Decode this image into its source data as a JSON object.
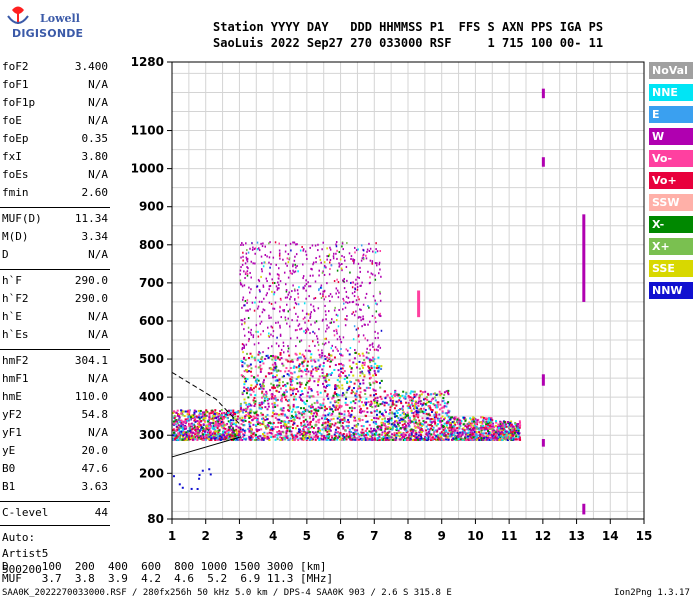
{
  "logo": {
    "top": "Lowell",
    "bottom": "DIGISONDE",
    "colors": {
      "text": "#3b5aa8",
      "pin": "#ff2020"
    }
  },
  "header": {
    "line1": "Station YYYY DAY   DDD HHMMSS P1  FFS S AXN PPS IGA PS",
    "line2": "SaoLuis 2022 Sep27 270 033000 RSF     1 715 100 00- 11"
  },
  "params": {
    "group1": [
      {
        "k": "foF2",
        "v": "3.400"
      },
      {
        "k": "foF1",
        "v": "N/A"
      },
      {
        "k": "foF1p",
        "v": "N/A"
      },
      {
        "k": "foE",
        "v": "N/A"
      },
      {
        "k": "foEp",
        "v": "0.35"
      },
      {
        "k": "fxI",
        "v": "3.80"
      },
      {
        "k": "foEs",
        "v": "N/A"
      },
      {
        "k": "fmin",
        "v": "2.60"
      }
    ],
    "group2": [
      {
        "k": "MUF(D)",
        "v": "11.34"
      },
      {
        "k": "M(D)",
        "v": "3.34"
      },
      {
        "k": "D",
        "v": "N/A"
      }
    ],
    "group3": [
      {
        "k": "h`F",
        "v": "290.0"
      },
      {
        "k": "h`F2",
        "v": "290.0"
      },
      {
        "k": "h`E",
        "v": "N/A"
      },
      {
        "k": "h`Es",
        "v": "N/A"
      }
    ],
    "group4": [
      {
        "k": "hmF2",
        "v": "304.1"
      },
      {
        "k": "hmF1",
        "v": "N/A"
      },
      {
        "k": "hmE",
        "v": "110.0"
      },
      {
        "k": "yF2",
        "v": "54.8"
      },
      {
        "k": "yF1",
        "v": "N/A"
      },
      {
        "k": "yE",
        "v": "20.0"
      },
      {
        "k": "B0",
        "v": "47.6"
      },
      {
        "k": "B1",
        "v": "3.63"
      }
    ],
    "clevel": {
      "k": "C-level",
      "v": "44"
    },
    "auto": [
      "Auto:",
      "Artist5",
      "500200"
    ]
  },
  "legend": [
    {
      "label": "NoVal",
      "color": "#a0a0a0"
    },
    {
      "label": "NNE",
      "color": "#00e5f5"
    },
    {
      "label": "E",
      "color": "#3aa0f0"
    },
    {
      "label": "W",
      "color": "#b000b0"
    },
    {
      "label": "Vo-",
      "color": "#ff40a0"
    },
    {
      "label": "Vo+",
      "color": "#e8003c"
    },
    {
      "label": "SSW",
      "color": "#ffb0a8"
    },
    {
      "label": "X-",
      "color": "#008800"
    },
    {
      "label": "X+",
      "color": "#7ac050"
    },
    {
      "label": "SSE",
      "color": "#d8d800"
    },
    {
      "label": "NNW",
      "color": "#1010d0"
    }
  ],
  "chart_data": {
    "type": "scatter",
    "title": "",
    "xlabel": "",
    "ylabel": "",
    "xlim": [
      1,
      15
    ],
    "ylim_range": [
      80,
      1280
    ],
    "x_ticks": [
      "1",
      "2",
      "3",
      "4",
      "5",
      "6",
      "7",
      "8",
      "9",
      "10",
      "11",
      "12",
      "13",
      "14",
      "15"
    ],
    "y_ticks": [
      {
        "value": 80,
        "label": "80"
      },
      {
        "value": 200,
        "label": "200"
      },
      {
        "value": 300,
        "label": "300"
      },
      {
        "value": 400,
        "label": "400"
      },
      {
        "value": 500,
        "label": "500"
      },
      {
        "value": 600,
        "label": "600"
      },
      {
        "value": 700,
        "label": "700"
      },
      {
        "value": 800,
        "label": "800"
      },
      {
        "value": 900,
        "label": "900"
      },
      {
        "value": 1000,
        "label": "1000"
      },
      {
        "value": 1100,
        "label": "1100"
      },
      {
        "value": 1280,
        "label": "1280"
      }
    ],
    "x_units": "MHz",
    "y_units": "km",
    "grid": true,
    "trace": {
      "note": "virtual height trace (ionogram echoes)",
      "f_min": 1.0,
      "f_max": 11.3,
      "h_base": 290,
      "h_top": 520
    },
    "profile_lines": [
      {
        "name": "profile-solid",
        "points": [
          [
            1.0,
            243
          ],
          [
            3.05,
            296
          ]
        ]
      },
      {
        "name": "profile-dashed",
        "points": [
          [
            1.0,
            465
          ],
          [
            2.3,
            395
          ],
          [
            3.0,
            330
          ]
        ]
      }
    ],
    "vertical_echoes": [
      {
        "f": 12.0,
        "h": [
          [
            1185,
            1210
          ],
          [
            1005,
            1030
          ],
          [
            430,
            460
          ],
          [
            270,
            290
          ]
        ]
      },
      {
        "f": 13.2,
        "h": [
          [
            650,
            880
          ],
          [
            92,
            120
          ]
        ]
      },
      {
        "f": 8.3,
        "h": [
          [
            610,
            680
          ]
        ]
      }
    ]
  },
  "bottom_table": {
    "row1": "D     100  200  400  600  800 1000 1500 3000 [km]",
    "row2": "MUF   3.7  3.8  3.9  4.2  4.6  5.2  6.9 11.3 [MHz]"
  },
  "footer": {
    "left": "SAA0K_2022270033000.RSF / 280fx256h 50 kHz 5.0 km / DPS-4 SAA0K 903 / 2.6 S 315.8 E",
    "right": "Ion2Png 1.3.17"
  }
}
